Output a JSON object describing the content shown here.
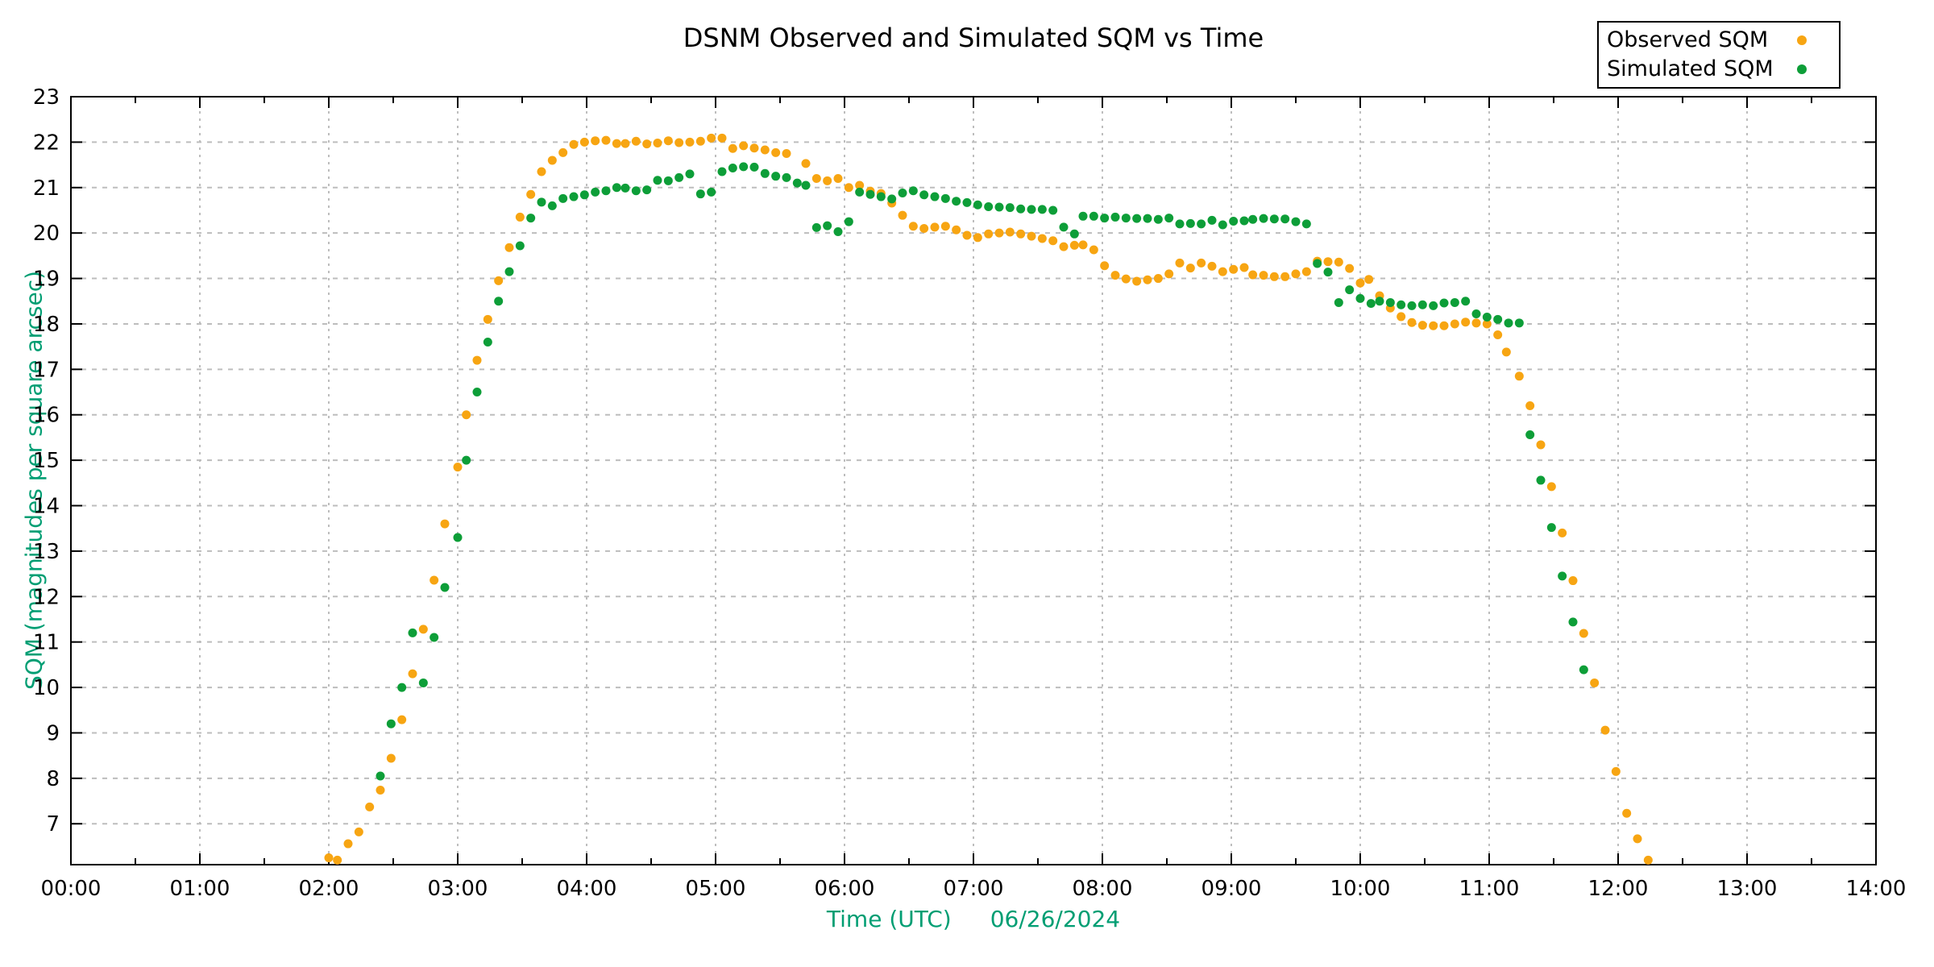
{
  "chart_data": {
    "type": "scatter",
    "title": "DSNM Observed and Simulated SQM vs Time",
    "xlabel": "Time (UTC)",
    "date_label": "06/26/2024",
    "ylabel": "SQM (magnitudes per square arcsec)",
    "label_color": "#009e73",
    "grid_color": "#bdbdbd",
    "axis_color": "#000000",
    "grid": "on",
    "legend_position": "top-right-outside",
    "xlim_hours": [
      0,
      14
    ],
    "ylim": [
      6.1,
      23
    ],
    "xtick_labels": [
      "00:00",
      "01:00",
      "02:00",
      "03:00",
      "04:00",
      "05:00",
      "06:00",
      "07:00",
      "08:00",
      "09:00",
      "10:00",
      "11:00",
      "12:00",
      "13:00",
      "14:00"
    ],
    "ytick_values": [
      7,
      8,
      9,
      10,
      11,
      12,
      13,
      14,
      15,
      16,
      17,
      18,
      19,
      20,
      21,
      22,
      23
    ],
    "series": [
      {
        "name": "Observed SQM",
        "color": "#f7a512",
        "points": [
          [
            "02:00",
            6.25
          ],
          [
            "02:04",
            6.2
          ],
          [
            "02:09",
            6.56
          ],
          [
            "02:14",
            6.82
          ],
          [
            "02:19",
            7.37
          ],
          [
            "02:24",
            7.74
          ],
          [
            "02:29",
            8.44
          ],
          [
            "02:34",
            9.29
          ],
          [
            "02:39",
            10.3
          ],
          [
            "02:44",
            11.28
          ],
          [
            "02:49",
            12.36
          ],
          [
            "02:54",
            13.6
          ],
          [
            "03:00",
            14.85
          ],
          [
            "03:04",
            16.0
          ],
          [
            "03:09",
            17.2
          ],
          [
            "03:14",
            18.1
          ],
          [
            "03:19",
            18.95
          ],
          [
            "03:24",
            19.68
          ],
          [
            "03:29",
            20.35
          ],
          [
            "03:34",
            20.85
          ],
          [
            "03:39",
            21.35
          ],
          [
            "03:44",
            21.6
          ],
          [
            "03:49",
            21.77
          ],
          [
            "03:54",
            21.95
          ],
          [
            "03:59",
            22.0
          ],
          [
            "04:04",
            22.03
          ],
          [
            "04:09",
            22.04
          ],
          [
            "04:14",
            21.97
          ],
          [
            "04:18",
            21.97
          ],
          [
            "04:23",
            22.02
          ],
          [
            "04:28",
            21.96
          ],
          [
            "04:33",
            21.98
          ],
          [
            "04:38",
            22.03
          ],
          [
            "04:43",
            21.99
          ],
          [
            "04:48",
            22.0
          ],
          [
            "04:53",
            22.02
          ],
          [
            "04:58",
            22.09
          ],
          [
            "05:03",
            22.09
          ],
          [
            "05:08",
            21.86
          ],
          [
            "05:13",
            21.92
          ],
          [
            "05:18",
            21.87
          ],
          [
            "05:23",
            21.83
          ],
          [
            "05:28",
            21.77
          ],
          [
            "05:33",
            21.75
          ],
          [
            "05:42",
            21.53
          ],
          [
            "05:47",
            21.2
          ],
          [
            "05:52",
            21.15
          ],
          [
            "05:57",
            21.2
          ],
          [
            "06:02",
            21.0
          ],
          [
            "06:07",
            21.05
          ],
          [
            "06:12",
            20.92
          ],
          [
            "06:17",
            20.87
          ],
          [
            "06:22",
            20.66
          ],
          [
            "06:27",
            20.39
          ],
          [
            "06:32",
            20.15
          ],
          [
            "06:37",
            20.1
          ],
          [
            "06:42",
            20.13
          ],
          [
            "06:47",
            20.15
          ],
          [
            "06:52",
            20.07
          ],
          [
            "06:57",
            19.95
          ],
          [
            "07:02",
            19.9
          ],
          [
            "07:07",
            19.98
          ],
          [
            "07:12",
            20.0
          ],
          [
            "07:17",
            20.02
          ],
          [
            "07:22",
            19.98
          ],
          [
            "07:27",
            19.93
          ],
          [
            "07:32",
            19.88
          ],
          [
            "07:37",
            19.83
          ],
          [
            "07:42",
            19.7
          ],
          [
            "07:47",
            19.73
          ],
          [
            "07:51",
            19.74
          ],
          [
            "07:56",
            19.63
          ],
          [
            "08:01",
            19.28
          ],
          [
            "08:06",
            19.07
          ],
          [
            "08:11",
            18.99
          ],
          [
            "08:16",
            18.94
          ],
          [
            "08:21",
            18.97
          ],
          [
            "08:26",
            19.0
          ],
          [
            "08:31",
            19.1
          ],
          [
            "08:36",
            19.34
          ],
          [
            "08:41",
            19.23
          ],
          [
            "08:46",
            19.34
          ],
          [
            "08:51",
            19.27
          ],
          [
            "08:56",
            19.15
          ],
          [
            "09:01",
            19.2
          ],
          [
            "09:06",
            19.24
          ],
          [
            "09:10",
            19.08
          ],
          [
            "09:15",
            19.07
          ],
          [
            "09:20",
            19.04
          ],
          [
            "09:25",
            19.04
          ],
          [
            "09:30",
            19.1
          ],
          [
            "09:35",
            19.15
          ],
          [
            "09:40",
            19.38
          ],
          [
            "09:45",
            19.37
          ],
          [
            "09:50",
            19.36
          ],
          [
            "09:55",
            19.22
          ],
          [
            "10:00",
            18.9
          ],
          [
            "10:04",
            18.98
          ],
          [
            "10:09",
            18.62
          ],
          [
            "10:14",
            18.35
          ],
          [
            "10:19",
            18.16
          ],
          [
            "10:24",
            18.03
          ],
          [
            "10:29",
            17.97
          ],
          [
            "10:34",
            17.96
          ],
          [
            "10:39",
            17.96
          ],
          [
            "10:44",
            18.0
          ],
          [
            "10:49",
            18.04
          ],
          [
            "10:54",
            18.02
          ],
          [
            "10:59",
            18.0
          ],
          [
            "11:04",
            17.76
          ],
          [
            "11:08",
            17.38
          ],
          [
            "11:14",
            16.85
          ],
          [
            "11:19",
            16.2
          ],
          [
            "11:24",
            15.34
          ],
          [
            "11:29",
            14.42
          ],
          [
            "11:34",
            13.4
          ],
          [
            "11:39",
            12.35
          ],
          [
            "11:44",
            11.19
          ],
          [
            "11:49",
            10.1
          ],
          [
            "11:54",
            9.06
          ],
          [
            "11:59",
            8.15
          ],
          [
            "12:04",
            7.23
          ],
          [
            "12:09",
            6.67
          ],
          [
            "12:14",
            6.2
          ]
        ]
      },
      {
        "name": "Simulated SQM",
        "color": "#0d9e38",
        "points": [
          [
            "02:24",
            8.05
          ],
          [
            "02:29",
            9.2
          ],
          [
            "02:34",
            10.0
          ],
          [
            "02:39",
            11.2
          ],
          [
            "02:44",
            10.1
          ],
          [
            "02:49",
            11.1
          ],
          [
            "02:54",
            12.2
          ],
          [
            "03:00",
            13.3
          ],
          [
            "03:04",
            15.0
          ],
          [
            "03:09",
            16.5
          ],
          [
            "03:14",
            17.6
          ],
          [
            "03:19",
            18.5
          ],
          [
            "03:24",
            19.15
          ],
          [
            "03:29",
            19.72
          ],
          [
            "03:34",
            20.33
          ],
          [
            "03:39",
            20.68
          ],
          [
            "03:44",
            20.6
          ],
          [
            "03:49",
            20.76
          ],
          [
            "03:54",
            20.8
          ],
          [
            "03:59",
            20.84
          ],
          [
            "04:04",
            20.9
          ],
          [
            "04:09",
            20.93
          ],
          [
            "04:14",
            21.0
          ],
          [
            "04:18",
            20.99
          ],
          [
            "04:23",
            20.93
          ],
          [
            "04:28",
            20.95
          ],
          [
            "04:33",
            21.16
          ],
          [
            "04:38",
            21.15
          ],
          [
            "04:43",
            21.22
          ],
          [
            "04:48",
            21.3
          ],
          [
            "04:53",
            20.86
          ],
          [
            "04:58",
            20.9
          ],
          [
            "05:03",
            21.35
          ],
          [
            "05:08",
            21.43
          ],
          [
            "05:13",
            21.46
          ],
          [
            "05:18",
            21.45
          ],
          [
            "05:23",
            21.31
          ],
          [
            "05:28",
            21.25
          ],
          [
            "05:33",
            21.22
          ],
          [
            "05:38",
            21.1
          ],
          [
            "05:42",
            21.05
          ],
          [
            "05:47",
            20.12
          ],
          [
            "05:52",
            20.16
          ],
          [
            "05:57",
            20.03
          ],
          [
            "06:02",
            20.25
          ],
          [
            "06:07",
            20.9
          ],
          [
            "06:12",
            20.85
          ],
          [
            "06:17",
            20.8
          ],
          [
            "06:22",
            20.75
          ],
          [
            "06:27",
            20.88
          ],
          [
            "06:32",
            20.93
          ],
          [
            "06:37",
            20.84
          ],
          [
            "06:42",
            20.8
          ],
          [
            "06:47",
            20.76
          ],
          [
            "06:52",
            20.7
          ],
          [
            "06:57",
            20.67
          ],
          [
            "07:02",
            20.62
          ],
          [
            "07:07",
            20.58
          ],
          [
            "07:12",
            20.57
          ],
          [
            "07:17",
            20.56
          ],
          [
            "07:22",
            20.53
          ],
          [
            "07:27",
            20.52
          ],
          [
            "07:32",
            20.52
          ],
          [
            "07:37",
            20.5
          ],
          [
            "07:42",
            20.13
          ],
          [
            "07:47",
            19.98
          ],
          [
            "07:51",
            20.37
          ],
          [
            "07:56",
            20.37
          ],
          [
            "08:01",
            20.33
          ],
          [
            "08:06",
            20.35
          ],
          [
            "08:11",
            20.33
          ],
          [
            "08:16",
            20.32
          ],
          [
            "08:21",
            20.32
          ],
          [
            "08:26",
            20.3
          ],
          [
            "08:31",
            20.33
          ],
          [
            "08:36",
            20.2
          ],
          [
            "08:41",
            20.21
          ],
          [
            "08:46",
            20.2
          ],
          [
            "08:51",
            20.28
          ],
          [
            "08:56",
            20.18
          ],
          [
            "09:01",
            20.26
          ],
          [
            "09:06",
            20.27
          ],
          [
            "09:10",
            20.3
          ],
          [
            "09:15",
            20.32
          ],
          [
            "09:20",
            20.31
          ],
          [
            "09:25",
            20.31
          ],
          [
            "09:30",
            20.25
          ],
          [
            "09:35",
            20.2
          ],
          [
            "09:40",
            19.33
          ],
          [
            "09:45",
            19.14
          ],
          [
            "09:50",
            18.47
          ],
          [
            "09:55",
            18.75
          ],
          [
            "10:00",
            18.56
          ],
          [
            "10:05",
            18.45
          ],
          [
            "10:09",
            18.5
          ],
          [
            "10:14",
            18.47
          ],
          [
            "10:19",
            18.42
          ],
          [
            "10:24",
            18.4
          ],
          [
            "10:29",
            18.42
          ],
          [
            "10:34",
            18.4
          ],
          [
            "10:39",
            18.46
          ],
          [
            "10:44",
            18.47
          ],
          [
            "10:49",
            18.5
          ],
          [
            "10:54",
            18.22
          ],
          [
            "10:59",
            18.15
          ],
          [
            "11:04",
            18.1
          ],
          [
            "11:09",
            18.02
          ],
          [
            "11:14",
            18.02
          ],
          [
            "11:19",
            15.56
          ],
          [
            "11:24",
            14.56
          ],
          [
            "11:29",
            13.52
          ],
          [
            "11:34",
            12.45
          ],
          [
            "11:39",
            11.44
          ],
          [
            "11:44",
            10.39
          ]
        ]
      }
    ]
  }
}
